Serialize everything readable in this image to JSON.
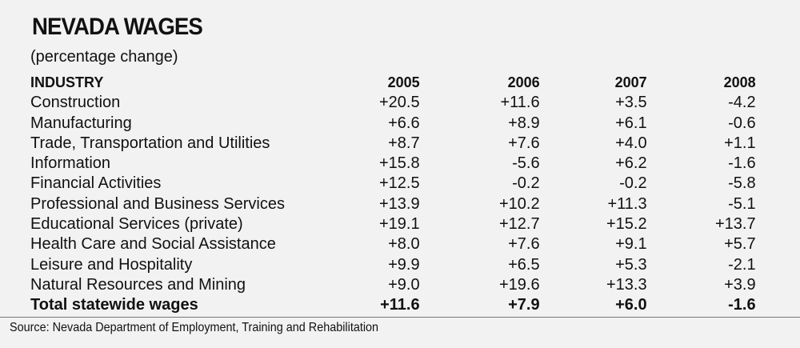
{
  "chart_data": {
    "type": "table",
    "title": "NEVADA WAGES",
    "subtitle": "(percentage change)",
    "columns": [
      "INDUSTRY",
      "2005",
      "2006",
      "2007",
      "2008"
    ],
    "rows": [
      {
        "industry": "Construction",
        "values": [
          "+20.5",
          "+11.6",
          "+3.5",
          "-4.2"
        ]
      },
      {
        "industry": "Manufacturing",
        "values": [
          "+6.6",
          "+8.9",
          "+6.1",
          "-0.6"
        ]
      },
      {
        "industry": "Trade, Transportation and Utilities",
        "values": [
          "+8.7",
          "+7.6",
          "+4.0",
          "+1.1"
        ]
      },
      {
        "industry": "Information",
        "values": [
          "+15.8",
          "-5.6",
          "+6.2",
          "-1.6"
        ]
      },
      {
        "industry": "Financial Activities",
        "values": [
          "+12.5",
          "-0.2",
          "-0.2",
          "-5.8"
        ]
      },
      {
        "industry": "Professional and Business Services",
        "values": [
          "+13.9",
          "+10.2",
          "+11.3",
          "-5.1"
        ]
      },
      {
        "industry": "Educational Services (private)",
        "values": [
          "+19.1",
          "+12.7",
          "+15.2",
          "+13.7"
        ]
      },
      {
        "industry": "Health Care and Social Assistance",
        "values": [
          "+8.0",
          "+7.6",
          "+9.1",
          "+5.7"
        ]
      },
      {
        "industry": "Leisure and Hospitality",
        "values": [
          "+9.9",
          "+6.5",
          "+5.3",
          "-2.1"
        ]
      },
      {
        "industry": "Natural Resources and Mining",
        "values": [
          "+9.0",
          "+19.6",
          "+13.3",
          "+3.9"
        ]
      }
    ],
    "total": {
      "industry": "Total statewide wages",
      "values": [
        "+11.6",
        "+7.9",
        "+6.0",
        "-1.6"
      ]
    },
    "source": "Source: Nevada Department of Employment, Training and Rehabilitation"
  }
}
